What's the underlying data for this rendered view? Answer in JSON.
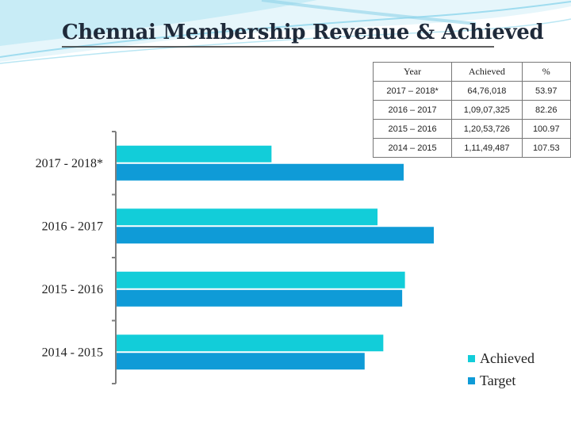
{
  "title": "Chennai Membership Revenue & Achieved",
  "colors": {
    "achieved": "#12cdd9",
    "target": "#0f9bd7",
    "axis": "#7f7f7f",
    "swoosh": "#9fdcef"
  },
  "table": {
    "headers": [
      "Year",
      "Achieved",
      "%"
    ],
    "rows": [
      [
        "2017 – 2018*",
        "64,76,018",
        "53.97"
      ],
      [
        "2016 – 2017",
        "1,09,07,325",
        "82.26"
      ],
      [
        "2015 – 2016",
        "1,20,53,726",
        "100.97"
      ],
      [
        "2014 – 2015",
        "1,11,49,487",
        "107.53"
      ]
    ]
  },
  "legend": {
    "achieved_label": "Achieved",
    "target_label": "Target"
  },
  "chart_data": {
    "type": "bar",
    "orientation": "horizontal",
    "categories": [
      "2017 - 2018*",
      "2016 - 2017",
      "2015 - 2016",
      "2014 - 2015"
    ],
    "series": [
      {
        "name": "Achieved",
        "values": [
          6476018,
          10907325,
          12053726,
          11149487
        ]
      },
      {
        "name": "Target",
        "values": [
          12000000,
          13260000,
          11938000,
          10369000
        ]
      }
    ],
    "title": "Chennai Membership Revenue & Achieved",
    "xlabel": "",
    "ylabel": "",
    "grid": false,
    "legend_position": "bottom-right"
  }
}
